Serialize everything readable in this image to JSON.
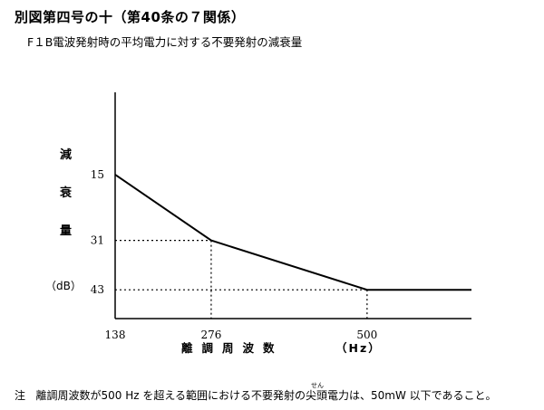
{
  "title": "別図第四号の十（第40条の７関係）",
  "subtitle": "F１B電波発射時の平均電力に対する不要発射の減衰量",
  "note": {
    "prefix": "注",
    "text_before": "離調周波数が500 Hz を超える範囲における不要発射の",
    "ruby_base": "尖",
    "ruby_text": "せん",
    "text_after": "頭電力は、50mW 以下であること。"
  },
  "chart_data": {
    "type": "line",
    "title": "F１B電波発射時の平均電力に対する不要発射の減衰量",
    "ylabel_chars": [
      "減",
      "衰",
      "量"
    ],
    "yunit": "（dB）",
    "xlabel": "離調周波数",
    "xunit": "（Hz）",
    "x_ticks": [
      138,
      276,
      500
    ],
    "y_ticks": [
      15,
      31,
      43
    ],
    "y_inverted": true,
    "xlim": [
      138,
      650
    ],
    "ylim": [
      -5,
      50
    ],
    "series": [
      {
        "values": [
          [
            138,
            15
          ],
          [
            276,
            31
          ],
          [
            500,
            43
          ],
          [
            650,
            43
          ]
        ]
      }
    ],
    "guides": [
      [
        276,
        31
      ],
      [
        500,
        43
      ]
    ]
  }
}
